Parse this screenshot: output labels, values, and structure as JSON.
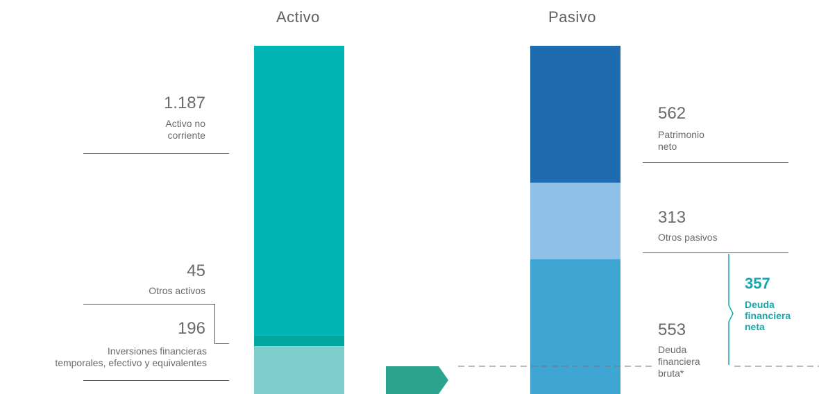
{
  "chart_data": {
    "type": "stacked-bar",
    "columns": [
      {
        "title": "Activo",
        "segments": [
          {
            "name": "Activo no corriente",
            "value": "1.187",
            "amount": 1187,
            "color": "#00b5b3"
          },
          {
            "name": "Otros activos",
            "value": "45",
            "amount": 45,
            "color": "#00a79f"
          },
          {
            "name": "Inversiones financieras temporales, efectivo y equivalentes",
            "value": "196",
            "amount": 196,
            "color": "#7ecece"
          }
        ]
      },
      {
        "title": "Pasivo",
        "segments": [
          {
            "name": "Patrimonio neto",
            "value": "562",
            "amount": 562,
            "color": "#1f6bb0"
          },
          {
            "name": "Otros pasivos",
            "value": "313",
            "amount": 313,
            "color": "#8fc1e8"
          },
          {
            "name": "Deuda financiera bruta*",
            "value": "553",
            "amount": 553,
            "color": "#3fa6d4"
          }
        ]
      }
    ],
    "annotation": {
      "value": "357",
      "label": "Deuda financiera neta",
      "color": "#13a7ad"
    }
  },
  "labels": {
    "activo_title": "Activo",
    "pasivo_title": "Pasivo",
    "anc_value": "1.187",
    "anc_label": "Activo no\ncorriente",
    "oa_value": "45",
    "oa_label": "Otros activos",
    "ift_value": "196",
    "ift_label": "Inversiones financieras\ntemporales, efectivo y equivalentes",
    "pn_value": "562",
    "pn_label": "Patrimonio\nneto",
    "op_value": "313",
    "op_label": "Otros pasivos",
    "dfb_value": "553",
    "dfb_label": "Deuda\nfinanciera\nbruta*",
    "dfn_value": "357",
    "dfn_label": "Deuda\nfinanciera\nneta"
  },
  "colors": {
    "arrow": "#2aa38f",
    "dashed": "#777777"
  }
}
